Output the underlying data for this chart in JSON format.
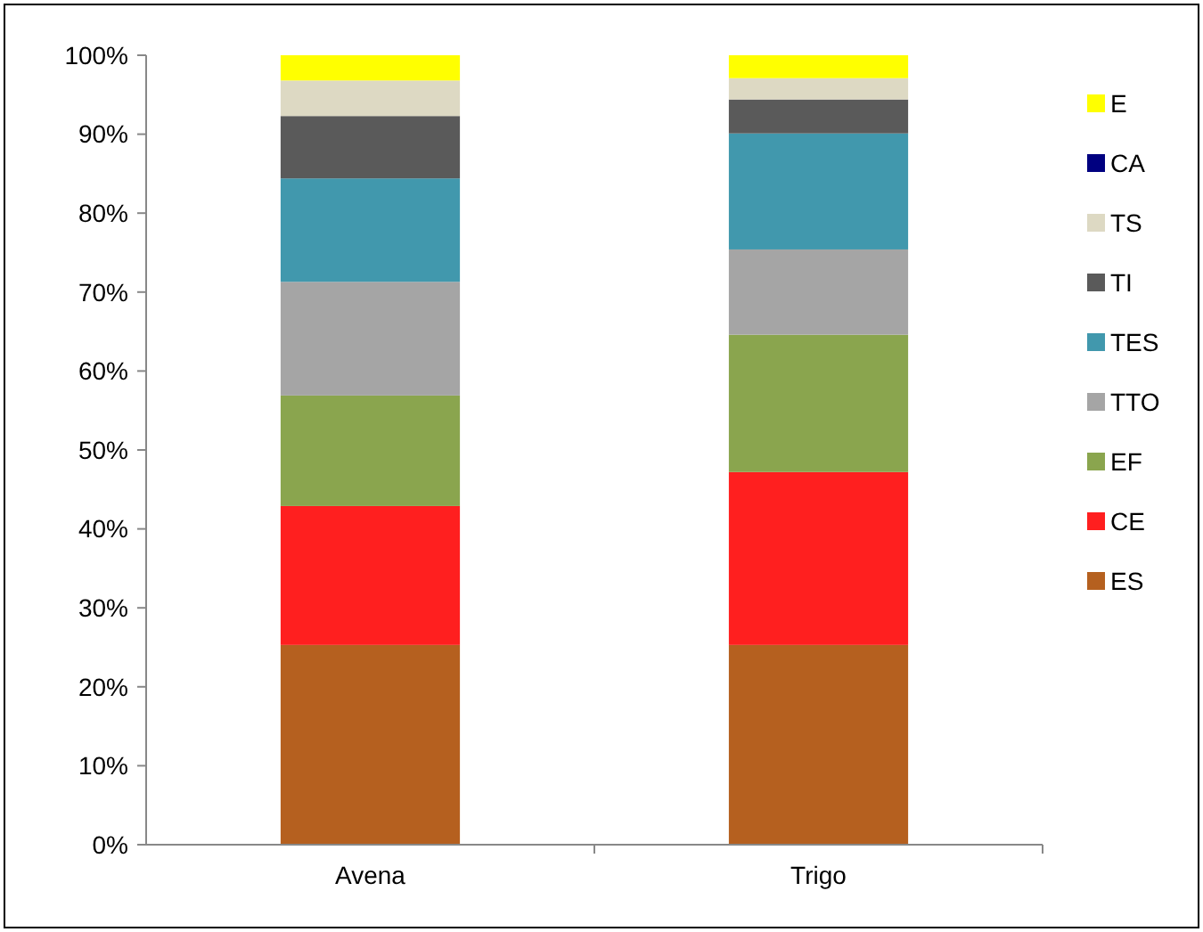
{
  "chart_data": {
    "type": "bar",
    "stacked": true,
    "categories": [
      "Avena",
      "Trigo"
    ],
    "series": [
      {
        "name": "ES",
        "color": "#b5601f",
        "values": [
          25.3,
          25.3
        ]
      },
      {
        "name": "CE",
        "color": "#ff1f1f",
        "values": [
          17.6,
          21.9
        ]
      },
      {
        "name": "EF",
        "color": "#8aa54e",
        "values": [
          14,
          17.4
        ]
      },
      {
        "name": "TTO",
        "color": "#a5a5a5",
        "values": [
          14.4,
          10.8
        ]
      },
      {
        "name": "TES",
        "color": "#4198ad",
        "values": [
          13.1,
          14.7
        ]
      },
      {
        "name": "TI",
        "color": "#5a5a5a",
        "values": [
          7.9,
          4.3
        ]
      },
      {
        "name": "TS",
        "color": "#ddd9c3",
        "values": [
          4.5,
          2.7
        ]
      },
      {
        "name": "CA",
        "color": "#000080",
        "values": [
          0,
          0
        ]
      },
      {
        "name": "E",
        "color": "#ffff00",
        "values": [
          3.2,
          2.9
        ]
      }
    ],
    "ylim": [
      0,
      100
    ],
    "yticks": [
      {
        "value": 0,
        "label": "0%"
      },
      {
        "value": 10,
        "label": "10%"
      },
      {
        "value": 20,
        "label": "20%"
      },
      {
        "value": 30,
        "label": "30%"
      },
      {
        "value": 40,
        "label": "40%"
      },
      {
        "value": 50,
        "label": "50%"
      },
      {
        "value": 60,
        "label": "60%"
      },
      {
        "value": 70,
        "label": "70%"
      },
      {
        "value": 80,
        "label": "80%"
      },
      {
        "value": 90,
        "label": "90%"
      },
      {
        "value": 100,
        "label": "100%"
      }
    ],
    "grid": false,
    "legend": "right"
  }
}
